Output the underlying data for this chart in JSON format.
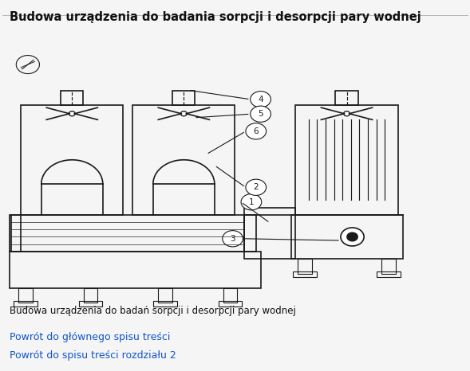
{
  "title": "Budowa urządzenia do badania sorpcji i desorpcji pary wodnej",
  "caption": "Budowa urządzenia do badań sorpcji i desorpcji pary wodnej",
  "link1": "Powrót do głównego spisu treści",
  "link2": "Powrót do spisu treści rozdziału 2",
  "bg_color": "#f5f5f5",
  "line_color": "#1a1a1a",
  "link_color": "#1155cc"
}
